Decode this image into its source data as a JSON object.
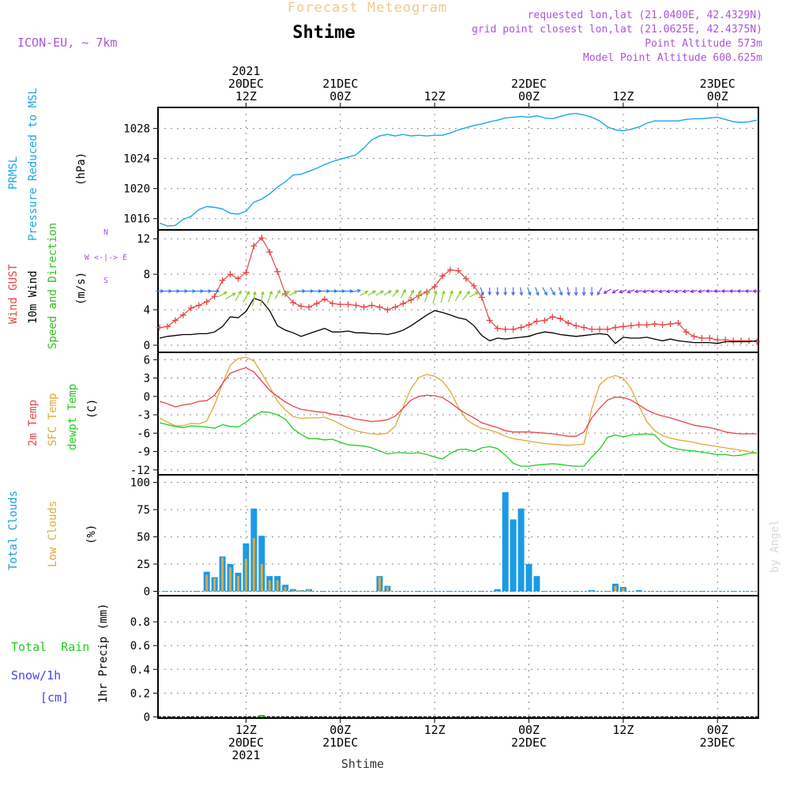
{
  "header": {
    "product_title": "Forecast Meteogram",
    "station_name": "Shtime",
    "model_name": "ICON-EU, ~ 7km",
    "requested_point": "requested lon,lat (21.0400E, 42.4329N)",
    "grid_point": "grid point closest lon,lat (21.0625E, 42.4375N)",
    "point_altitude": "Point Altitude 573m",
    "model_altitude": "Model Point Altitude 600.625m"
  },
  "footer": {
    "station_name": "Shtime",
    "watermark": "by Angel"
  },
  "colors": {
    "pressure": "#1aa7e8",
    "gust": "#e84545",
    "wind": "#000000",
    "wind_dir": "#2ec41e",
    "temp2m": "#e84545",
    "sfc_temp": "#e0a83a",
    "dewpoint": "#22cc22",
    "total_clouds": "#1b9ae6",
    "low_clouds": "#e0a83a",
    "rain": "#22cc22",
    "snow": "#4444ee",
    "title_purple": "#a855d8",
    "grid": "#888888"
  },
  "time_axis": {
    "top_ticks": [
      {
        "x": 12,
        "lines": [
          "2021",
          "20DEC",
          "12Z"
        ]
      },
      {
        "x": 24,
        "lines": [
          "21DEC",
          "00Z"
        ]
      },
      {
        "x": 36,
        "lines": [
          "12Z"
        ]
      },
      {
        "x": 48,
        "lines": [
          "22DEC",
          "00Z"
        ]
      },
      {
        "x": 60,
        "lines": [
          "12Z"
        ]
      },
      {
        "x": 72,
        "lines": [
          "23DEC",
          "00Z"
        ]
      }
    ],
    "bottom_ticks": [
      {
        "x": 12,
        "lines": [
          "12Z",
          "20DEC",
          "2021"
        ]
      },
      {
        "x": 24,
        "lines": [
          "00Z",
          "21DEC"
        ]
      },
      {
        "x": 36,
        "lines": [
          "12Z"
        ]
      },
      {
        "x": 48,
        "lines": [
          "00Z",
          "22DEC"
        ]
      },
      {
        "x": 60,
        "lines": [
          "12Z"
        ]
      },
      {
        "x": 72,
        "lines": [
          "00Z",
          "23DEC"
        ]
      }
    ],
    "x_range": [
      1,
      77
    ],
    "x_unit": "hours from 20DEC 00Z"
  },
  "chart_data": [
    {
      "type": "line",
      "panel": "pressure",
      "labels": {
        "name": "PRMSL",
        "desc": "Pressure Reduced to MSL",
        "unit": "(hPa)"
      },
      "ylim": [
        1014.5,
        1030.8
      ],
      "yticks": [
        1016,
        1020,
        1024,
        1028
      ],
      "x": [
        1,
        2,
        3,
        4,
        5,
        6,
        7,
        8,
        9,
        10,
        11,
        12,
        13,
        14,
        15,
        16,
        17,
        18,
        19,
        20,
        21,
        22,
        23,
        24,
        25,
        26,
        27,
        28,
        29,
        30,
        31,
        32,
        33,
        34,
        35,
        36,
        37,
        38,
        39,
        40,
        41,
        42,
        43,
        44,
        45,
        46,
        47,
        48,
        49,
        50,
        51,
        52,
        53,
        54,
        55,
        56,
        57,
        58,
        59,
        60,
        61,
        62,
        63,
        64,
        65,
        66,
        67,
        68,
        69,
        70,
        71,
        72,
        73,
        74,
        75,
        76,
        77
      ],
      "series": [
        {
          "name": "PRMSL",
          "values": [
            1015.4,
            1015.0,
            1015.1,
            1015.9,
            1016.3,
            1017.2,
            1017.6,
            1017.5,
            1017.3,
            1016.7,
            1016.6,
            1017.0,
            1018.2,
            1018.6,
            1019.3,
            1020.2,
            1020.9,
            1021.8,
            1021.9,
            1022.3,
            1022.7,
            1023.2,
            1023.6,
            1023.9,
            1024.2,
            1024.5,
            1025.4,
            1026.5,
            1027.0,
            1027.2,
            1027.0,
            1027.2,
            1027.0,
            1027.1,
            1027.0,
            1027.1,
            1027.1,
            1027.4,
            1027.8,
            1028.1,
            1028.4,
            1028.6,
            1028.9,
            1029.1,
            1029.4,
            1029.5,
            1029.6,
            1029.5,
            1029.7,
            1029.4,
            1029.3,
            1029.6,
            1029.9,
            1030.0,
            1029.8,
            1029.5,
            1029.0,
            1028.2,
            1027.8,
            1027.7,
            1027.9,
            1028.2,
            1028.7,
            1029.0,
            1029.0,
            1029.0,
            1029.0,
            1029.2,
            1029.3,
            1029.3,
            1029.4,
            1029.5,
            1029.2,
            1028.9,
            1028.8,
            1028.9,
            1029.1
          ]
        }
      ]
    },
    {
      "type": "line",
      "panel": "wind",
      "labels": {
        "gust": "Wind GUST",
        "wind": "10m Wind",
        "dir": "Speed and Direction",
        "unit": "(m/s)",
        "compass": [
          "N",
          "W <-|-> E",
          "S"
        ]
      },
      "ylim": [
        -0.8,
        13.0
      ],
      "yticks": [
        0,
        4,
        8,
        12
      ],
      "x": [
        1,
        2,
        3,
        4,
        5,
        6,
        7,
        8,
        9,
        10,
        11,
        12,
        13,
        14,
        15,
        16,
        17,
        18,
        19,
        20,
        21,
        22,
        23,
        24,
        25,
        26,
        27,
        28,
        29,
        30,
        31,
        32,
        33,
        34,
        35,
        36,
        37,
        38,
        39,
        40,
        41,
        42,
        43,
        44,
        45,
        46,
        47,
        48,
        49,
        50,
        51,
        52,
        53,
        54,
        55,
        56,
        57,
        58,
        59,
        60,
        61,
        62,
        63,
        64,
        65,
        66,
        67,
        68,
        69,
        70,
        71,
        72,
        73,
        74,
        75,
        76,
        77
      ],
      "series": [
        {
          "name": "Wind GUST",
          "values": [
            2.0,
            2.1,
            2.8,
            3.4,
            4.2,
            4.5,
            4.9,
            5.5,
            7.3,
            8.0,
            7.5,
            8.2,
            11.2,
            12.1,
            10.5,
            8.3,
            5.8,
            4.8,
            4.4,
            4.3,
            4.7,
            5.2,
            4.7,
            4.6,
            4.6,
            4.5,
            4.3,
            4.5,
            4.3,
            4.0,
            4.3,
            4.7,
            5.1,
            5.6,
            6.0,
            6.6,
            7.8,
            8.5,
            8.4,
            7.5,
            6.7,
            5.4,
            2.8,
            1.9,
            1.8,
            1.8,
            2.0,
            2.3,
            2.7,
            2.8,
            3.2,
            3.0,
            2.5,
            2.2,
            2.0,
            1.8,
            1.8,
            1.8,
            2.0,
            2.1,
            2.2,
            2.3,
            2.3,
            2.4,
            2.3,
            2.4,
            2.5,
            1.5,
            1.0,
            0.8,
            0.8,
            0.6,
            0.6,
            0.5,
            0.5,
            0.5,
            0.4
          ]
        },
        {
          "name": "10m Wind",
          "values": [
            0.8,
            1.0,
            1.1,
            1.2,
            1.2,
            1.3,
            1.3,
            1.5,
            2.1,
            3.2,
            3.1,
            3.8,
            5.3,
            5.0,
            3.9,
            2.2,
            1.7,
            1.4,
            1.0,
            1.3,
            1.6,
            1.9,
            1.5,
            1.5,
            1.6,
            1.4,
            1.4,
            1.3,
            1.3,
            1.2,
            1.4,
            1.7,
            2.2,
            2.8,
            3.4,
            3.9,
            3.7,
            3.4,
            3.1,
            2.9,
            2.2,
            1.1,
            0.5,
            0.8,
            0.7,
            0.8,
            0.9,
            1.0,
            1.3,
            1.5,
            1.4,
            1.2,
            1.1,
            1.0,
            1.1,
            1.2,
            1.3,
            1.2,
            0.2,
            0.9,
            0.8,
            0.8,
            0.9,
            0.7,
            0.5,
            0.7,
            0.5,
            0.4,
            0.3,
            0.3,
            0.3,
            0.2,
            0.4,
            0.4,
            0.4,
            0.4,
            0.5
          ]
        },
        {
          "name": "direction_deg",
          "values": [
            270,
            270,
            270,
            270,
            270,
            270,
            270,
            270,
            300,
            300,
            330,
            330,
            350,
            350,
            340,
            330,
            300,
            300,
            270,
            270,
            270,
            270,
            270,
            270,
            270,
            280,
            300,
            300,
            300,
            300,
            320,
            330,
            330,
            340,
            340,
            345,
            345,
            340,
            330,
            320,
            300,
            200,
            180,
            180,
            180,
            180,
            190,
            200,
            200,
            210,
            210,
            200,
            190,
            180,
            180,
            180,
            150,
            120,
            120,
            110,
            110,
            100,
            100,
            100,
            100,
            100,
            100,
            100,
            100,
            100,
            90,
            90,
            90,
            90,
            90,
            90,
            90
          ]
        }
      ]
    },
    {
      "type": "line",
      "panel": "temperature",
      "labels": {
        "t2m": "2m Temp",
        "sfc": "SFC Temp",
        "dew": "dewpt Temp",
        "unit": "(C)"
      },
      "ylim": [
        -12.8,
        7.2
      ],
      "yticks": [
        6,
        3,
        0,
        -3,
        -6,
        -9,
        -12
      ],
      "x": [
        1,
        2,
        3,
        4,
        5,
        6,
        7,
        8,
        9,
        10,
        11,
        12,
        13,
        14,
        15,
        16,
        17,
        18,
        19,
        20,
        21,
        22,
        23,
        24,
        25,
        26,
        27,
        28,
        29,
        30,
        31,
        32,
        33,
        34,
        35,
        36,
        37,
        38,
        39,
        40,
        41,
        42,
        43,
        44,
        45,
        46,
        47,
        48,
        49,
        50,
        51,
        52,
        53,
        54,
        55,
        56,
        57,
        58,
        59,
        60,
        61,
        62,
        63,
        64,
        65,
        66,
        67,
        68,
        69,
        70,
        71,
        72,
        73,
        74,
        75,
        76,
        77
      ],
      "series": [
        {
          "name": "2m Temp",
          "values": [
            -0.8,
            -1.2,
            -1.7,
            -1.4,
            -1.2,
            -0.8,
            -0.7,
            0.2,
            2.1,
            3.8,
            4.3,
            4.7,
            4.0,
            2.5,
            1.0,
            0.0,
            -0.9,
            -1.6,
            -2.1,
            -2.3,
            -2.5,
            -2.6,
            -2.9,
            -3.1,
            -3.3,
            -3.7,
            -3.9,
            -4.1,
            -4.0,
            -3.8,
            -3.2,
            -1.9,
            -0.6,
            0.0,
            0.2,
            0.1,
            -0.2,
            -1.0,
            -2.0,
            -2.8,
            -3.5,
            -4.3,
            -4.7,
            -5.1,
            -5.6,
            -5.8,
            -5.8,
            -5.8,
            -5.9,
            -6.0,
            -6.1,
            -6.3,
            -6.5,
            -6.5,
            -5.8,
            -3.5,
            -1.9,
            -0.6,
            -0.1,
            -0.2,
            -0.6,
            -1.4,
            -2.2,
            -2.8,
            -3.2,
            -3.5,
            -3.9,
            -4.3,
            -4.7,
            -4.9,
            -5.1,
            -5.4,
            -5.8,
            -6.0,
            -6.1,
            -6.1,
            -6.1
          ]
        },
        {
          "name": "SFC Temp",
          "values": [
            -3.5,
            -4.2,
            -4.8,
            -4.8,
            -4.4,
            -4.5,
            -4.0,
            -1.4,
            2.1,
            5.1,
            6.2,
            6.4,
            5.8,
            3.8,
            1.6,
            -0.8,
            -2.2,
            -3.3,
            -3.6,
            -3.5,
            -3.5,
            -3.4,
            -3.9,
            -4.5,
            -5.2,
            -5.6,
            -5.9,
            -6.1,
            -6.2,
            -6.0,
            -4.8,
            -1.7,
            1.3,
            3.1,
            3.6,
            3.3,
            2.5,
            0.8,
            -1.7,
            -3.7,
            -4.6,
            -5.2,
            -5.5,
            -5.9,
            -6.5,
            -6.9,
            -7.1,
            -7.3,
            -7.5,
            -7.7,
            -7.8,
            -7.9,
            -8.0,
            -7.9,
            -7.8,
            -2.0,
            1.9,
            3.0,
            3.4,
            3.0,
            1.3,
            -1.6,
            -4.1,
            -5.6,
            -6.4,
            -6.8,
            -7.1,
            -7.3,
            -7.5,
            -7.8,
            -8.0,
            -8.2,
            -8.4,
            -8.6,
            -8.8,
            -9.0,
            -9.3
          ]
        },
        {
          "name": "dewpt Temp",
          "values": [
            -4.3,
            -4.6,
            -4.9,
            -5.1,
            -4.8,
            -4.9,
            -5.0,
            -5.2,
            -4.6,
            -4.9,
            -5.0,
            -4.2,
            -3.2,
            -2.5,
            -2.6,
            -3.0,
            -3.7,
            -5.3,
            -6.2,
            -6.9,
            -6.9,
            -7.1,
            -7.0,
            -7.5,
            -7.9,
            -8.0,
            -8.1,
            -8.4,
            -8.9,
            -9.4,
            -9.2,
            -9.2,
            -9.3,
            -9.2,
            -9.5,
            -9.9,
            -10.2,
            -9.3,
            -8.7,
            -8.6,
            -9.0,
            -8.4,
            -8.2,
            -8.5,
            -9.6,
            -10.9,
            -11.4,
            -11.4,
            -11.2,
            -11.1,
            -11.0,
            -11.1,
            -11.3,
            -11.4,
            -11.4,
            -9.9,
            -8.6,
            -6.7,
            -6.3,
            -6.6,
            -6.3,
            -6.2,
            -6.1,
            -6.3,
            -7.6,
            -8.3,
            -8.6,
            -8.8,
            -8.9,
            -9.1,
            -9.3,
            -9.5,
            -9.5,
            -9.7,
            -9.6,
            -9.3,
            -9.2
          ]
        }
      ]
    },
    {
      "type": "bar",
      "panel": "clouds",
      "labels": {
        "total": "Total Clouds",
        "low": "Low Clouds",
        "unit": "(%)"
      },
      "ylim": [
        -4,
        107
      ],
      "yticks": [
        0,
        25,
        50,
        75,
        100
      ],
      "x": [
        7,
        8,
        9,
        10,
        11,
        12,
        13,
        14,
        15,
        16,
        17,
        18,
        19,
        20,
        29,
        30,
        44,
        45,
        46,
        47,
        48,
        49,
        56,
        59,
        60,
        62
      ],
      "series": [
        {
          "name": "Total Clouds",
          "values": [
            18,
            13,
            32,
            25,
            17,
            44,
            76,
            51,
            14,
            14,
            6,
            2,
            1,
            2,
            14,
            5,
            2,
            91,
            66,
            76,
            25,
            14,
            1,
            7,
            4,
            1
          ]
        },
        {
          "name": "Low Clouds",
          "values": [
            15,
            12,
            31,
            22,
            14,
            30,
            49,
            25,
            10,
            10,
            4,
            1,
            1,
            2,
            13,
            4,
            0,
            0,
            0,
            0,
            0,
            0,
            0,
            5,
            3,
            0
          ]
        }
      ]
    },
    {
      "type": "bar",
      "panel": "precip",
      "labels": {
        "rain": "Total  Rain",
        "snow": "Snow/1h",
        "snow_unit": "[cm]",
        "unit": "1hr Precip (mm)"
      },
      "ylim": [
        -0.01,
        1.02
      ],
      "yticks": [
        0,
        0.2,
        0.4,
        0.6,
        0.8
      ],
      "x": [
        14
      ],
      "series": [
        {
          "name": "Total Rain",
          "values": [
            0.01
          ]
        },
        {
          "name": "Snow/1h",
          "values": [
            0
          ]
        }
      ]
    }
  ]
}
